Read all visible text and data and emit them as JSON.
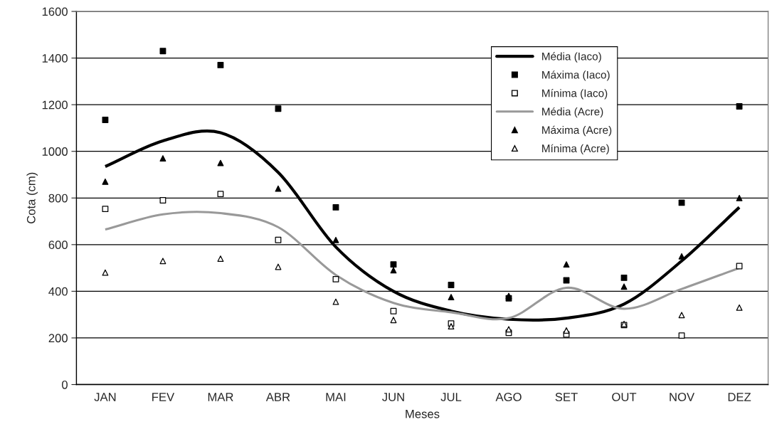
{
  "chart_data": {
    "type": "line",
    "xlabel": "Meses",
    "ylabel": "Cota (cm)",
    "categories": [
      "JAN",
      "FEV",
      "MAR",
      "ABR",
      "MAI",
      "JUN",
      "JUL",
      "AGO",
      "SET",
      "OUT",
      "NOV",
      "DEZ"
    ],
    "series": [
      {
        "name": "Média (Iaco)",
        "color": "#000000",
        "marker": "none",
        "values": [
          935,
          1045,
          1080,
          910,
          590,
          400,
          315,
          280,
          285,
          345,
          530,
          760
        ]
      },
      {
        "name": "Máxima (Iaco)",
        "type": "scatter",
        "color": "#000000",
        "marker": "square",
        "values": [
          1135,
          1430,
          1370,
          1183,
          760,
          515,
          427,
          370,
          447,
          458,
          780,
          1193
        ]
      },
      {
        "name": "Mínima (Iaco)",
        "type": "scatter",
        "color": "#ffffff",
        "marker": "square",
        "values": [
          753,
          790,
          817,
          620,
          452,
          315,
          262,
          222,
          215,
          255,
          210,
          508
        ]
      },
      {
        "name": "Média (Acre)",
        "color": "#999999",
        "marker": "none",
        "values": [
          665,
          730,
          735,
          675,
          470,
          350,
          310,
          285,
          415,
          325,
          410,
          500
        ]
      },
      {
        "name": "Máxima (Acre)",
        "type": "scatter",
        "color": "#000000",
        "marker": "triangle",
        "values": [
          870,
          970,
          950,
          840,
          620,
          490,
          375,
          380,
          515,
          420,
          550,
          800
        ]
      },
      {
        "name": "Mínima (Acre)",
        "type": "scatter",
        "color": "#ffffff",
        "marker": "triangle",
        "values": [
          480,
          530,
          540,
          505,
          355,
          277,
          250,
          237,
          232,
          260,
          298,
          330
        ]
      }
    ],
    "ylim": [
      0,
      1600
    ],
    "yticks": [
      0,
      200,
      400,
      600,
      800,
      1000,
      1200,
      1400,
      1600
    ],
    "grid": "y",
    "legend": "top right"
  }
}
